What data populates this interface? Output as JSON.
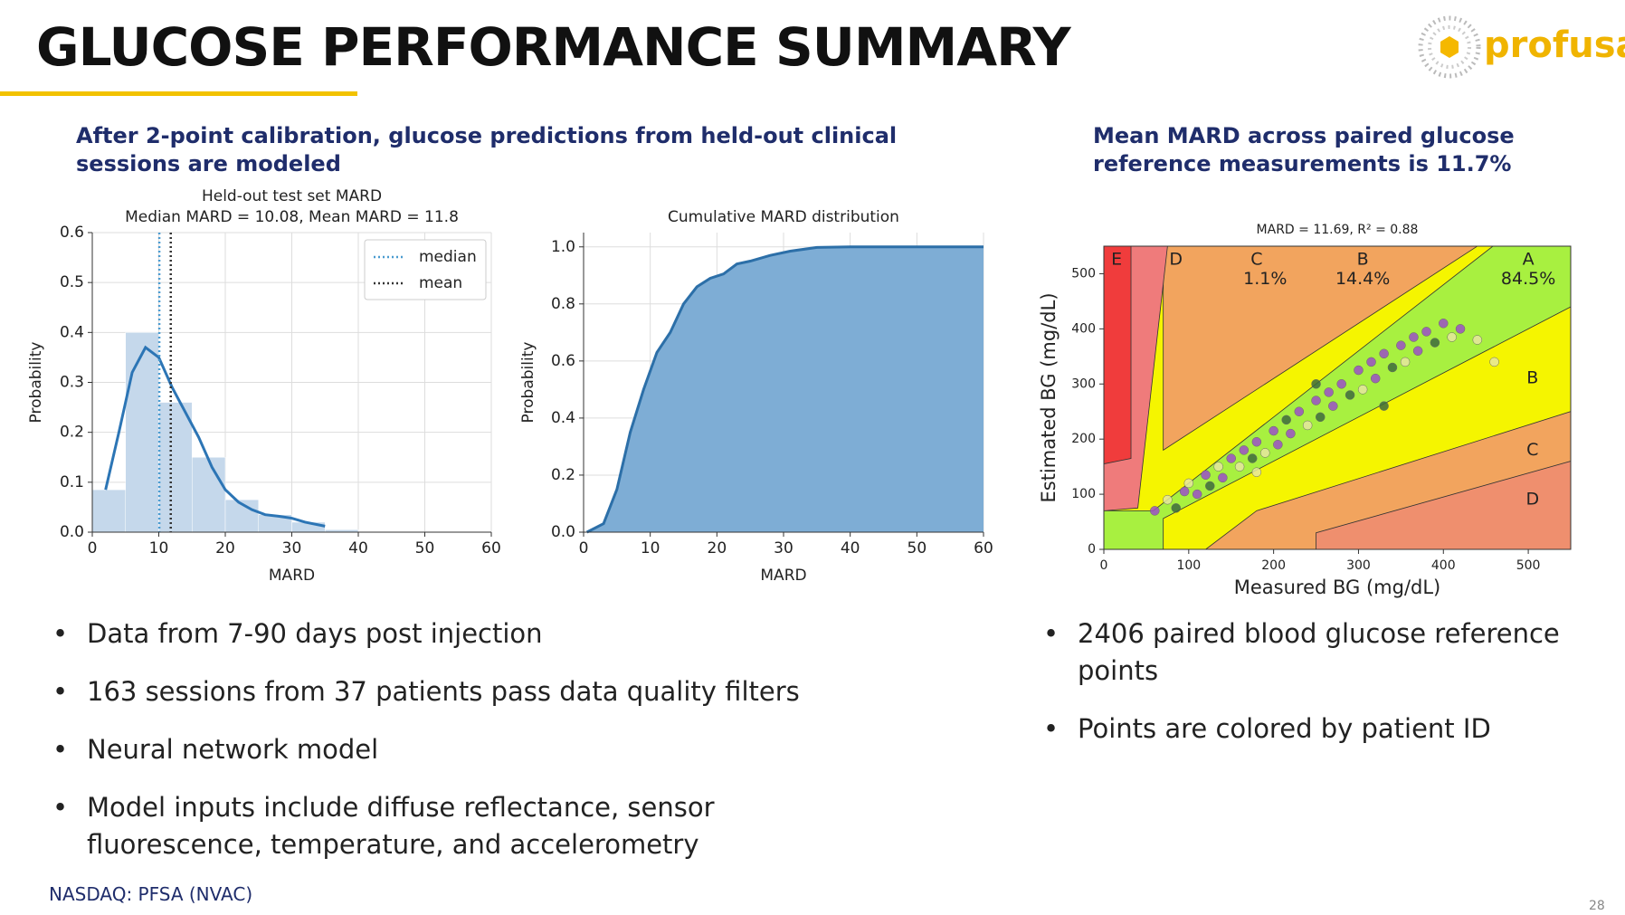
{
  "header": {
    "title": "GLUCOSE PERFORMANCE SUMMARY",
    "logo": "profusa"
  },
  "left": {
    "heading": "After 2-point calibration, glucose predictions from held-out clinical sessions are modeled",
    "bullets": [
      "Data from 7-90 days post injection",
      "163 sessions from 37 patients pass data quality filters",
      "Neural network model",
      "Model inputs include diffuse reflectance, sensor fluorescence, temperature, and accelerometry"
    ]
  },
  "right": {
    "heading": "Mean MARD across paired glucose reference measurements is 11.7%",
    "bullets": [
      "2406 paired blood glucose reference points",
      "Points are colored by patient ID"
    ]
  },
  "footer": {
    "ticker": "NASDAQ: PFSA (NVAC)",
    "page": 28
  },
  "chart_data": [
    {
      "type": "histogram",
      "title": "Held-out test set MARD",
      "subtitle": "Median MARD = 10.08, Mean MARD = 11.8",
      "x_label": "MARD",
      "y_label": "Probability",
      "bins": [
        0,
        5,
        10,
        15,
        20,
        25,
        30,
        35,
        40
      ],
      "values": [
        0.085,
        0.4,
        0.26,
        0.15,
        0.065,
        0.035,
        0.02,
        0.005
      ],
      "color": "#c5d8eb",
      "line": {
        "x": [
          2,
          4,
          6,
          8,
          10,
          12,
          14,
          16,
          18,
          20,
          22,
          24,
          26,
          28,
          30,
          32,
          35
        ],
        "values": [
          0.085,
          0.2,
          0.32,
          0.37,
          0.35,
          0.29,
          0.24,
          0.19,
          0.13,
          0.085,
          0.06,
          0.045,
          0.035,
          0.032,
          0.028,
          0.02,
          0.012
        ],
        "color": "#2c75b5"
      },
      "vlines": [
        {
          "name": "median",
          "value": 10.08,
          "color": "#4a9bd0"
        },
        {
          "name": "mean",
          "value": 11.8,
          "color": "#333333"
        }
      ],
      "xlim": [
        0,
        60
      ],
      "ylim": [
        0,
        0.6
      ],
      "xticks": [
        0,
        10,
        20,
        30,
        40,
        50,
        60
      ],
      "yticks": [
        {
          "value": 0,
          "label": "0.0"
        },
        0.1,
        0.2,
        0.3,
        0.4,
        0.5,
        0.6
      ],
      "grid": true,
      "legend": "upper right"
    },
    {
      "type": "area",
      "title": "Cumulative MARD distribution",
      "x_label": "MARD",
      "y_label": "Probability",
      "x": [
        0.5,
        3,
        5,
        7,
        9,
        11,
        13,
        15,
        17,
        19,
        21,
        23,
        25,
        28,
        31,
        35,
        40,
        60
      ],
      "values": [
        0,
        0.03,
        0.15,
        0.35,
        0.5,
        0.63,
        0.7,
        0.8,
        0.86,
        0.89,
        0.905,
        0.94,
        0.95,
        0.97,
        0.985,
        0.998,
        1.0,
        1.0
      ],
      "color": "#7eadd5",
      "line_color": "#2c6fa8",
      "xlim": [
        0,
        60
      ],
      "ylim": [
        0,
        1.05
      ],
      "xticks": [
        0,
        10,
        20,
        30,
        40,
        50,
        60
      ],
      "yticks": [
        {
          "value": 0,
          "label": "0.0"
        },
        0.2,
        0.4,
        0.6,
        0.8,
        {
          "value": 1,
          "label": "1.0"
        }
      ],
      "grid": true
    },
    {
      "type": "scatter",
      "title": "MARD = 11.69, R² = 0.88",
      "x_label": "Measured BG (mg/dL)",
      "y_label": "Estimated BG (mg/dL)",
      "x": [
        60,
        75,
        85,
        95,
        100,
        110,
        120,
        125,
        135,
        140,
        150,
        160,
        165,
        175,
        180,
        190,
        200,
        205,
        215,
        220,
        230,
        240,
        250,
        255,
        265,
        270,
        280,
        290,
        300,
        305,
        315,
        320,
        330,
        340,
        350,
        355,
        365,
        370,
        380,
        390,
        400,
        410,
        420,
        440,
        460,
        330,
        250,
        180
      ],
      "values": [
        70,
        90,
        75,
        105,
        120,
        100,
        135,
        115,
        150,
        130,
        165,
        150,
        180,
        165,
        195,
        175,
        215,
        190,
        235,
        210,
        250,
        225,
        270,
        240,
        285,
        260,
        300,
        280,
        325,
        290,
        340,
        310,
        355,
        330,
        370,
        340,
        385,
        360,
        395,
        375,
        410,
        385,
        400,
        380,
        340,
        260,
        300,
        140
      ],
      "colors": [
        "#9b4fc8",
        "#e6e6a0",
        "#3d6b3d",
        "#9b4fc8",
        "#e6e6a0",
        "#9b4fc8",
        "#9b4fc8",
        "#3d6b3d",
        "#e6e6a0",
        "#9b4fc8",
        "#9b4fc8",
        "#e6e6a0",
        "#9b4fc8",
        "#3d6b3d",
        "#9b4fc8",
        "#e6e6a0",
        "#9b4fc8",
        "#9b4fc8",
        "#3d6b3d",
        "#9b4fc8",
        "#9b4fc8",
        "#e6e6a0",
        "#9b4fc8",
        "#3d6b3d",
        "#9b4fc8",
        "#9b4fc8",
        "#9b4fc8",
        "#3d6b3d",
        "#9b4fc8",
        "#e6e6a0",
        "#9b4fc8",
        "#9b4fc8",
        "#9b4fc8",
        "#3d6b3d",
        "#9b4fc8",
        "#e6e6a0",
        "#9b4fc8",
        "#9b4fc8",
        "#9b4fc8",
        "#3d6b3d",
        "#9b4fc8",
        "#e6e6a0",
        "#9b4fc8",
        "#e6e6a0",
        "#e6e6a0",
        "#3d6b3d",
        "#3d6b3d",
        "#e6e6a0"
      ],
      "zone_labels": [
        "E",
        "D",
        "C",
        "B",
        "A",
        "B",
        "C",
        "D"
      ],
      "zone_shares": [
        {
          "value": 1.1,
          "label": "1.1%"
        },
        {
          "value": 14.4,
          "label": "14.4%"
        },
        {
          "value": 84.5,
          "label": "84.5%"
        }
      ],
      "xlim": [
        0,
        550
      ],
      "ylim": [
        0,
        550
      ],
      "xticks": [
        0,
        100,
        200,
        300,
        400,
        500
      ],
      "yticks": [
        0,
        100,
        200,
        300,
        400,
        500
      ],
      "grid": false
    }
  ]
}
